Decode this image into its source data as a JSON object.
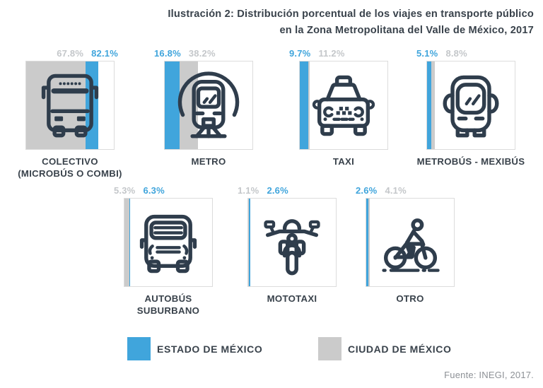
{
  "title": {
    "line1": "Ilustración 2: Distribución porcentual de los viajes en transporte público",
    "line2": "en la Zona Metropolitana del Valle de México, 2017"
  },
  "colors": {
    "estado_blue": "#40A5DC",
    "ciudad_gray": "#CBCBCB",
    "icon_ink": "#2F3D4C",
    "pct_gray_text": "#C4C7CA",
    "tile_border": "#DCDCDC",
    "dark_text": "#39424B",
    "source_gray": "#8D9196"
  },
  "tiles": [
    {
      "caption": "COLECTIVO\n(MICROBÚS O COMBI)",
      "icon": "colectivo-bus-icon",
      "estado": 82.1,
      "ciudad": 67.8,
      "align": "right",
      "labels": [
        {
          "text": "67.8%",
          "series": "ciudad"
        },
        {
          "text": "82.1%",
          "series": "estado"
        }
      ]
    },
    {
      "caption": "METRO",
      "icon": "metro-train-icon",
      "estado": 16.8,
      "ciudad": 38.2,
      "align": "left",
      "labels": [
        {
          "text": "16.8%",
          "series": "estado"
        },
        {
          "text": "38.2%",
          "series": "ciudad"
        }
      ]
    },
    {
      "caption": "TAXI",
      "icon": "taxi-car-icon",
      "estado": 9.7,
      "ciudad": 11.2,
      "align": "left",
      "labels": [
        {
          "text": "9.7%",
          "series": "estado"
        },
        {
          "text": "11.2%",
          "series": "ciudad"
        }
      ]
    },
    {
      "caption": "METROBÚS - MEXIBÚS",
      "icon": "metrobus-icon",
      "estado": 5.1,
      "ciudad": 8.8,
      "align": "left",
      "labels": [
        {
          "text": "5.1%",
          "series": "estado"
        },
        {
          "text": "8.8%",
          "series": "ciudad"
        }
      ]
    },
    {
      "caption": "AUTOBÚS\nSUBURBANO",
      "icon": "suburban-bus-icon",
      "estado": 6.3,
      "ciudad": 5.3,
      "align": "left",
      "labels": [
        {
          "text": "5.3%",
          "series": "ciudad"
        },
        {
          "text": "6.3%",
          "series": "estado"
        }
      ]
    },
    {
      "caption": "MOTOTAXI",
      "icon": "mototaxi-motorcycle-icon",
      "estado": 2.6,
      "ciudad": 1.1,
      "align": "left",
      "labels": [
        {
          "text": "1.1%",
          "series": "ciudad"
        },
        {
          "text": "2.6%",
          "series": "estado"
        }
      ]
    },
    {
      "caption": "OTRO",
      "icon": "bicycle-rider-icon",
      "estado": 2.6,
      "ciudad": 4.1,
      "align": "left",
      "labels": [
        {
          "text": "2.6%",
          "series": "estado"
        },
        {
          "text": "4.1%",
          "series": "ciudad"
        }
      ]
    }
  ],
  "legend": {
    "items": [
      {
        "label": "ESTADO DE MÉXICO",
        "series": "estado"
      },
      {
        "label": "CIUDAD DE MÉXICO",
        "series": "ciudad"
      }
    ]
  },
  "source": "Fuente: INEGI, 2017.",
  "chart_data": {
    "type": "bar",
    "title": "Ilustración 2: Distribución porcentual de los viajes en transporte público en la Zona Metropolitana del Valle de México, 2017",
    "unit": "%",
    "categories": [
      "Colectivo (microbús o combi)",
      "Metro",
      "Taxi",
      "Metrobús - Mexibús",
      "Autobús suburbano",
      "Mototaxi",
      "Otro"
    ],
    "series": [
      {
        "name": "Estado de México",
        "color": "#40A5DC",
        "values": [
          82.1,
          16.8,
          9.7,
          5.1,
          6.3,
          2.6,
          2.6
        ]
      },
      {
        "name": "Ciudad de México",
        "color": "#CBCBCB",
        "values": [
          67.8,
          38.2,
          11.2,
          8.8,
          5.3,
          1.1,
          4.1
        ]
      }
    ],
    "xlim": [
      0,
      100
    ],
    "legend_position": "bottom",
    "source": "Fuente: INEGI, 2017."
  }
}
